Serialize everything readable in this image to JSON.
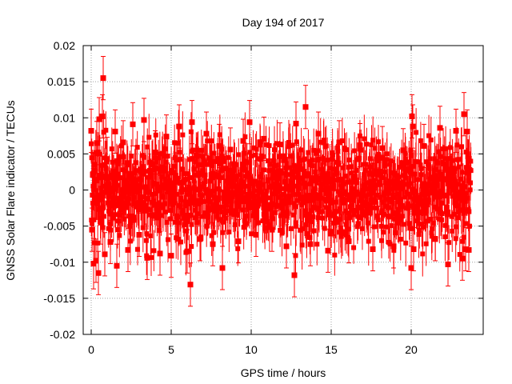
{
  "chart_data": {
    "type": "scatter",
    "title": "Day 194 of 2017",
    "xlabel": "GPS time / hours",
    "ylabel": "GNSS Solar Flare indicator / TECUs",
    "xlim": [
      -0.5,
      24.5
    ],
    "ylim": [
      -0.02,
      0.02
    ],
    "xticks": [
      0,
      5,
      10,
      15,
      20
    ],
    "xtick_labels": [
      "0",
      "5",
      "10",
      "15",
      "20"
    ],
    "yticks": [
      -0.02,
      -0.015,
      -0.01,
      -0.005,
      0,
      0.005,
      0.01,
      0.015,
      0.02
    ],
    "ytick_labels": [
      "-0.02",
      "-0.015",
      "-0.01",
      "-0.005",
      "0",
      "0.005",
      "0.01",
      "0.015",
      "0.02"
    ],
    "grid": true,
    "legend": "none",
    "series": [
      {
        "color": "#ff0000",
        "marker": "square",
        "error_bars": true,
        "points": [
          {
            "x": 0.0,
            "y": 0.0082,
            "err": 0.003
          },
          {
            "x": 0.05,
            "y": -0.0055,
            "err": 0.003
          },
          {
            "x": 0.1,
            "y": 0.0021,
            "err": 0.003
          },
          {
            "x": 0.15,
            "y": -0.0102,
            "err": 0.0035
          },
          {
            "x": 0.2,
            "y": 0.0035,
            "err": 0.003
          },
          {
            "x": 0.3,
            "y": -0.0098,
            "err": 0.003
          },
          {
            "x": 0.35,
            "y": 0.0065,
            "err": 0.003
          },
          {
            "x": 0.45,
            "y": -0.0115,
            "err": 0.003
          },
          {
            "x": 0.5,
            "y": 0.0098,
            "err": 0.003
          },
          {
            "x": 0.6,
            "y": -0.0045,
            "err": 0.003
          },
          {
            "x": 0.7,
            "y": 0.0102,
            "err": 0.003
          },
          {
            "x": 0.75,
            "y": 0.0155,
            "err": 0.003
          },
          {
            "x": 0.85,
            "y": -0.0089,
            "err": 0.003
          },
          {
            "x": 1.0,
            "y": 0.0043,
            "err": 0.003
          },
          {
            "x": 1.2,
            "y": -0.0072,
            "err": 0.003
          },
          {
            "x": 1.5,
            "y": 0.0081,
            "err": 0.003
          },
          {
            "x": 1.6,
            "y": -0.0105,
            "err": 0.003
          },
          {
            "x": 2.0,
            "y": 0.0066,
            "err": 0.003
          },
          {
            "x": 2.3,
            "y": -0.0083,
            "err": 0.003
          },
          {
            "x": 2.6,
            "y": 0.0091,
            "err": 0.003
          },
          {
            "x": 3.0,
            "y": -0.0062,
            "err": 0.003
          },
          {
            "x": 3.3,
            "y": 0.0097,
            "err": 0.003
          },
          {
            "x": 3.5,
            "y": -0.0094,
            "err": 0.003
          },
          {
            "x": 4.0,
            "y": 0.0052,
            "err": 0.003
          },
          {
            "x": 4.3,
            "y": -0.0088,
            "err": 0.003
          },
          {
            "x": 4.7,
            "y": 0.0074,
            "err": 0.003
          },
          {
            "x": 5.0,
            "y": -0.0091,
            "err": 0.003
          },
          {
            "x": 5.5,
            "y": 0.0088,
            "err": 0.003
          },
          {
            "x": 6.0,
            "y": -0.0085,
            "err": 0.003
          },
          {
            "x": 6.2,
            "y": -0.0131,
            "err": 0.003
          },
          {
            "x": 6.3,
            "y": 0.0094,
            "err": 0.003
          },
          {
            "x": 6.8,
            "y": -0.0068,
            "err": 0.003
          },
          {
            "x": 7.2,
            "y": 0.0078,
            "err": 0.003
          },
          {
            "x": 7.6,
            "y": -0.0075,
            "err": 0.003
          },
          {
            "x": 8.0,
            "y": 0.0061,
            "err": 0.003
          },
          {
            "x": 8.2,
            "y": -0.0108,
            "err": 0.003
          },
          {
            "x": 8.7,
            "y": 0.0056,
            "err": 0.003
          },
          {
            "x": 9.2,
            "y": -0.0071,
            "err": 0.003
          },
          {
            "x": 9.5,
            "y": 0.0068,
            "err": 0.003
          },
          {
            "x": 9.9,
            "y": 0.0094,
            "err": 0.003
          },
          {
            "x": 10.3,
            "y": -0.0062,
            "err": 0.003
          },
          {
            "x": 10.8,
            "y": 0.0071,
            "err": 0.003
          },
          {
            "x": 11.3,
            "y": -0.0055,
            "err": 0.003
          },
          {
            "x": 11.8,
            "y": 0.0063,
            "err": 0.003
          },
          {
            "x": 12.2,
            "y": -0.0078,
            "err": 0.003
          },
          {
            "x": 12.7,
            "y": -0.0118,
            "err": 0.003
          },
          {
            "x": 12.8,
            "y": 0.0092,
            "err": 0.003
          },
          {
            "x": 13.4,
            "y": 0.0115,
            "err": 0.003
          },
          {
            "x": 13.7,
            "y": -0.0075,
            "err": 0.003
          },
          {
            "x": 14.2,
            "y": 0.0078,
            "err": 0.003
          },
          {
            "x": 14.8,
            "y": -0.0084,
            "err": 0.003
          },
          {
            "x": 15.5,
            "y": 0.0066,
            "err": 0.003
          },
          {
            "x": 16.1,
            "y": -0.0071,
            "err": 0.003
          },
          {
            "x": 16.8,
            "y": 0.0062,
            "err": 0.003
          },
          {
            "x": 17.6,
            "y": -0.0082,
            "err": 0.003
          },
          {
            "x": 18.2,
            "y": 0.0058,
            "err": 0.003
          },
          {
            "x": 18.9,
            "y": -0.0078,
            "err": 0.003
          },
          {
            "x": 19.5,
            "y": 0.0055,
            "err": 0.003
          },
          {
            "x": 20.0,
            "y": -0.0108,
            "err": 0.003
          },
          {
            "x": 20.05,
            "y": 0.0102,
            "err": 0.003
          },
          {
            "x": 20.1,
            "y": 0.0088,
            "err": 0.003
          },
          {
            "x": 20.15,
            "y": -0.0082,
            "err": 0.003
          },
          {
            "x": 20.8,
            "y": 0.0061,
            "err": 0.003
          },
          {
            "x": 21.5,
            "y": -0.0068,
            "err": 0.003
          },
          {
            "x": 21.8,
            "y": 0.0086,
            "err": 0.003
          },
          {
            "x": 22.3,
            "y": -0.0103,
            "err": 0.003
          },
          {
            "x": 22.8,
            "y": 0.0082,
            "err": 0.003
          },
          {
            "x": 23.2,
            "y": -0.0095,
            "err": 0.003
          },
          {
            "x": 23.3,
            "y": 0.0105,
            "err": 0.003
          },
          {
            "x": 23.4,
            "y": -0.0082,
            "err": 0.003
          },
          {
            "x": 23.5,
            "y": 0.0081,
            "err": 0.003
          },
          {
            "x": 23.6,
            "y": -0.0083,
            "err": 0.003
          }
        ]
      }
    ]
  }
}
